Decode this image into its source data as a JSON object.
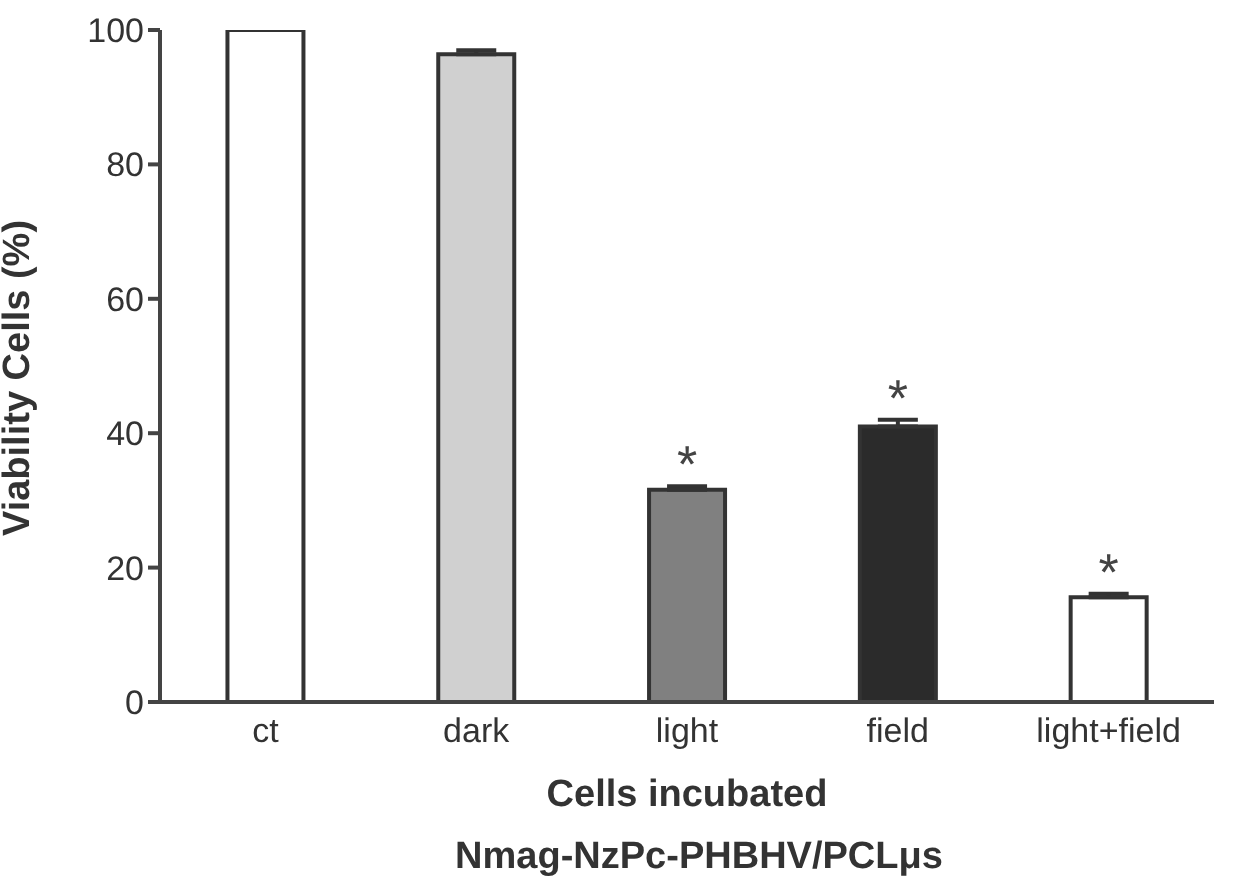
{
  "chart_data": {
    "type": "bar",
    "xlabel": "Cells incubated",
    "ylabel": "Viability Cells (%)",
    "categories": [
      "ct",
      "dark",
      "light",
      "field",
      "light+field"
    ],
    "values": [
      100,
      96.4,
      31.6,
      41.0,
      15.6
    ],
    "errors": [
      null,
      [
        96.4,
        97.0
      ],
      [
        31.6,
        32.1
      ],
      [
        41.0,
        42.0
      ],
      [
        15.6,
        16.1
      ]
    ],
    "colors": [
      "#ffffff",
      "#d0d0d0",
      "#808080",
      "#2b2b2b",
      "#ffffff"
    ],
    "ylim": [
      0,
      100
    ],
    "yticks": [
      0,
      20,
      40,
      60,
      80,
      100
    ],
    "grid": false,
    "legend": false,
    "annotations": [
      {
        "text": "*",
        "x": "light",
        "y": 32.1
      },
      {
        "text": "*",
        "x": "field",
        "y": 42.0
      },
      {
        "text": "*",
        "x": "light+field",
        "y": 16.1
      },
      "Nmag-NzPc-PHBHV/PCLμs"
    ]
  }
}
